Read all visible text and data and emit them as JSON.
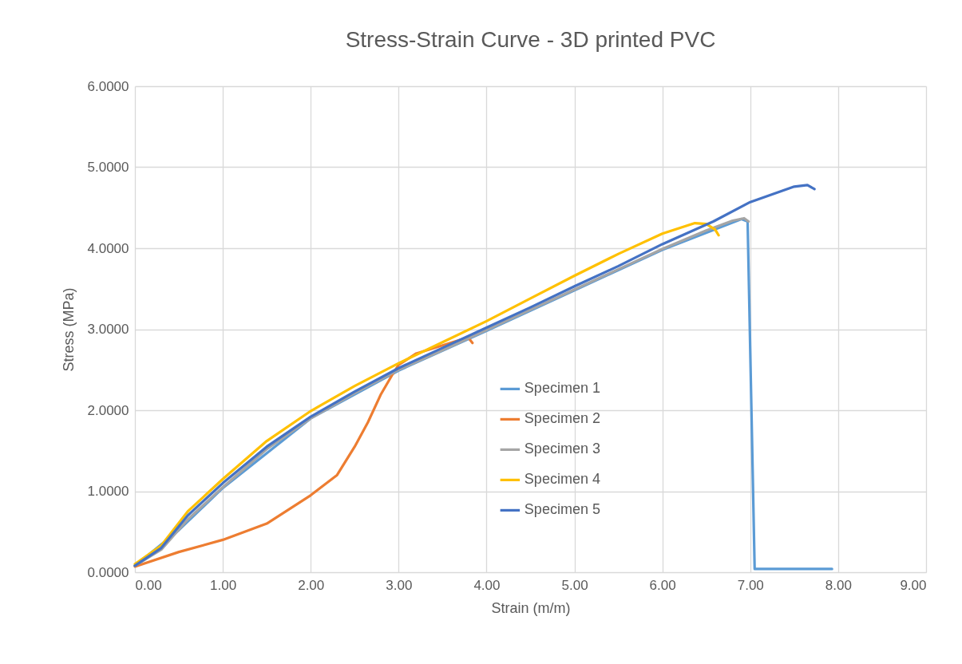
{
  "chart_data": {
    "type": "line",
    "title": "Stress-Strain Curve - 3D printed PVC",
    "xlabel": "Strain (m/m)",
    "ylabel": "Stress (MPa)",
    "xlim": [
      0,
      9
    ],
    "xticks": [
      {
        "value": 0,
        "label": "0.00"
      },
      {
        "value": 1,
        "label": "1.00"
      },
      {
        "value": 2,
        "label": "2.00"
      },
      {
        "value": 3,
        "label": "3.00"
      },
      {
        "value": 4,
        "label": "4.00"
      },
      {
        "value": 5,
        "label": "5.00"
      },
      {
        "value": 6,
        "label": "6.00"
      },
      {
        "value": 7,
        "label": "7.00"
      },
      {
        "value": 8,
        "label": "8.00"
      },
      {
        "value": 9,
        "label": "9.00"
      }
    ],
    "ylim": [
      0,
      6
    ],
    "yticks": [
      {
        "value": 0,
        "label": "0.0000"
      },
      {
        "value": 1,
        "label": "1.0000"
      },
      {
        "value": 2,
        "label": "2.0000"
      },
      {
        "value": 3,
        "label": "3.0000"
      },
      {
        "value": 4,
        "label": "4.0000"
      },
      {
        "value": 5,
        "label": "5.0000"
      },
      {
        "value": 6,
        "label": "6.0000"
      }
    ],
    "grid": true,
    "legend": "center",
    "marker": "none",
    "line_style": "solid",
    "series": [
      {
        "name": "Specimen 1",
        "color": "#5b9bd5",
        "x": [
          0,
          0.5,
          1.0,
          2.0,
          3.0,
          4.0,
          5.0,
          6.0,
          6.9,
          6.97,
          7.05,
          7.5,
          7.93
        ],
        "values": [
          0.08,
          0.52,
          1.04,
          1.9,
          2.49,
          2.98,
          3.48,
          3.98,
          4.36,
          4.33,
          0.04,
          0.04,
          0.04
        ]
      },
      {
        "name": "Specimen 2",
        "color": "#ed7d31",
        "x": [
          0,
          0.5,
          1.0,
          1.5,
          2.0,
          2.3,
          2.5,
          2.65,
          2.8,
          2.94,
          3.0,
          3.2,
          3.5,
          3.79,
          3.84
        ],
        "values": [
          0.07,
          0.25,
          0.4,
          0.6,
          0.95,
          1.2,
          1.55,
          1.85,
          2.2,
          2.46,
          2.56,
          2.7,
          2.8,
          2.9,
          2.83
        ]
      },
      {
        "name": "Specimen 3",
        "color": "#a5a5a5",
        "x": [
          0,
          0.3,
          0.6,
          1.0,
          1.5,
          2.0,
          2.5,
          3.0,
          3.5,
          4.0,
          4.5,
          5.0,
          5.5,
          6.0,
          6.5,
          6.8,
          6.93,
          6.98
        ],
        "values": [
          0.08,
          0.28,
          0.65,
          1.05,
          1.52,
          1.9,
          2.21,
          2.5,
          2.74,
          2.99,
          3.24,
          3.49,
          3.74,
          3.99,
          4.22,
          4.34,
          4.37,
          4.33
        ]
      },
      {
        "name": "Specimen 4",
        "color": "#ffc000",
        "x": [
          0,
          0.3,
          0.6,
          1.0,
          1.5,
          2.0,
          2.5,
          3.0,
          3.5,
          4.0,
          4.5,
          5.0,
          5.5,
          6.0,
          6.37,
          6.5,
          6.6,
          6.64
        ],
        "values": [
          0.1,
          0.33,
          0.75,
          1.15,
          1.62,
          1.99,
          2.3,
          2.58,
          2.84,
          3.1,
          3.38,
          3.66,
          3.93,
          4.18,
          4.31,
          4.3,
          4.23,
          4.16
        ]
      },
      {
        "name": "Specimen 5",
        "color": "#4472c4",
        "x": [
          0,
          0.3,
          0.6,
          1.0,
          1.5,
          2.0,
          2.5,
          3.0,
          3.5,
          4.0,
          4.5,
          5.0,
          5.5,
          6.0,
          6.58,
          7.0,
          7.5,
          7.65,
          7.73
        ],
        "values": [
          0.08,
          0.3,
          0.7,
          1.1,
          1.55,
          1.92,
          2.23,
          2.52,
          2.77,
          3.02,
          3.27,
          3.53,
          3.78,
          4.05,
          4.33,
          4.57,
          4.76,
          4.78,
          4.73
        ]
      }
    ]
  }
}
